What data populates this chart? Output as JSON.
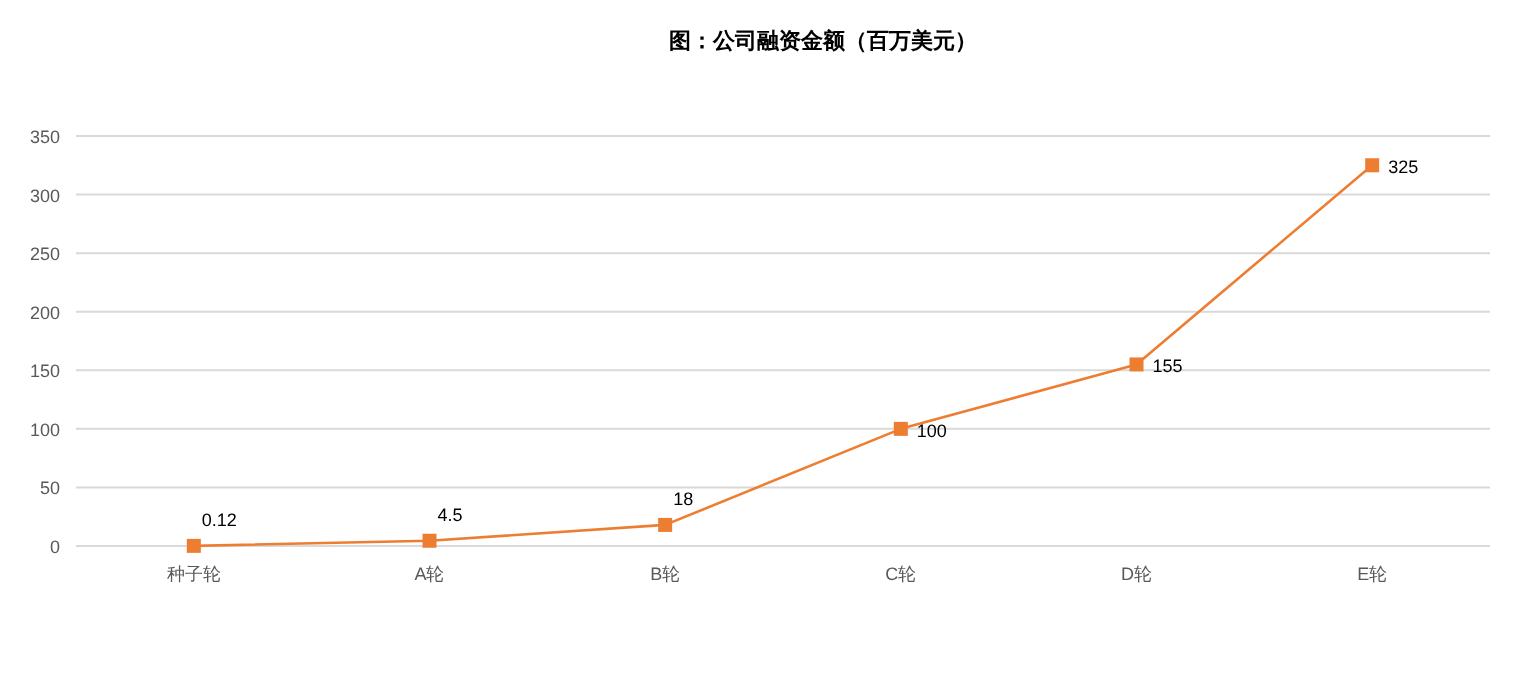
{
  "chart_data": {
    "type": "line",
    "title": "图：公司融资金额（百万美元）",
    "categories": [
      "种子轮",
      "A轮",
      "B轮",
      "C轮",
      "D轮",
      "E轮"
    ],
    "values": [
      0.12,
      4.5,
      18,
      100,
      155,
      325
    ],
    "color": "#ed7d31",
    "marker": "square",
    "data_labels": true,
    "ylim": [
      0,
      350
    ],
    "yticks": [
      0,
      50,
      100,
      150,
      200,
      250,
      300,
      350
    ],
    "grid": "y"
  }
}
